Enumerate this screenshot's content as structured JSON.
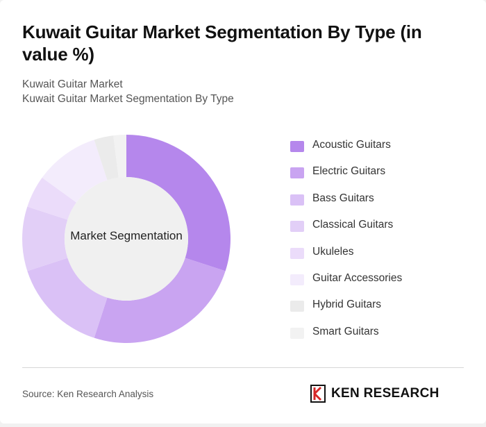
{
  "header": {
    "title": "Kuwait Guitar Market Segmentation By Type (in value %)",
    "breadcrumb_1": "Kuwait Guitar Market",
    "breadcrumb_2": "Kuwait Guitar Market Segmentation By Type"
  },
  "chart_data": {
    "type": "pie",
    "center_label": "Market Segmentation",
    "categories": [
      "Acoustic Guitars",
      "Electric Guitars",
      "Bass Guitars",
      "Classical Guitars",
      "Ukuleles",
      "Guitar Accessories",
      "Hybrid Guitars",
      "Smart Guitars"
    ],
    "values": [
      30,
      25,
      15,
      10,
      5,
      10,
      3,
      2
    ],
    "colors": [
      "#b587ec",
      "#c9a4f1",
      "#dac1f6",
      "#e2cff7",
      "#ebdcfa",
      "#f3ecfc",
      "#ebebeb",
      "#f2f2f2"
    ],
    "legend_position": "right"
  },
  "footer": {
    "source": "Source: Ken Research Analysis",
    "brand": "KEN RESEARCH"
  }
}
